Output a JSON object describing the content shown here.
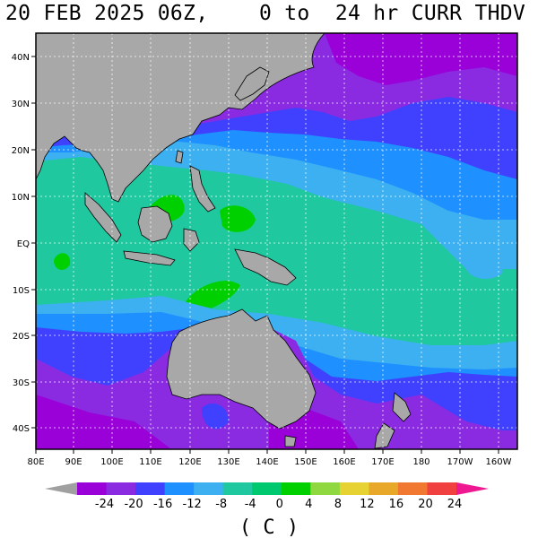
{
  "header": {
    "title": "20 FEB 2025 06Z,    0 to  24 hr CURR THDV"
  },
  "map": {
    "lat_labels": [
      "40N",
      "30N",
      "20N",
      "10N",
      "EQ",
      "10S",
      "20S",
      "30S",
      "40S"
    ],
    "lon_labels": [
      "80E",
      "90E",
      "100E",
      "110E",
      "120E",
      "130E",
      "140E",
      "150E",
      "160E",
      "170E",
      "180",
      "170W",
      "160W"
    ],
    "land_color": "#a8a8a8",
    "ocean_color": "#ffffff"
  },
  "colorbar": {
    "labels": [
      "-24",
      "-20",
      "-16",
      "-12",
      "-8",
      "-4",
      "0",
      "4",
      "8",
      "12",
      "16",
      "20",
      "24"
    ],
    "colors": [
      "#a0a0a0",
      "#9a00d8",
      "#8a2be2",
      "#4040ff",
      "#1e90ff",
      "#3cb0f0",
      "#20c8a0",
      "#00c86e",
      "#00d000",
      "#90d840",
      "#e6d232",
      "#e8a82a",
      "#f07830",
      "#f04040",
      "#f01890"
    ],
    "unit": "( C )"
  }
}
